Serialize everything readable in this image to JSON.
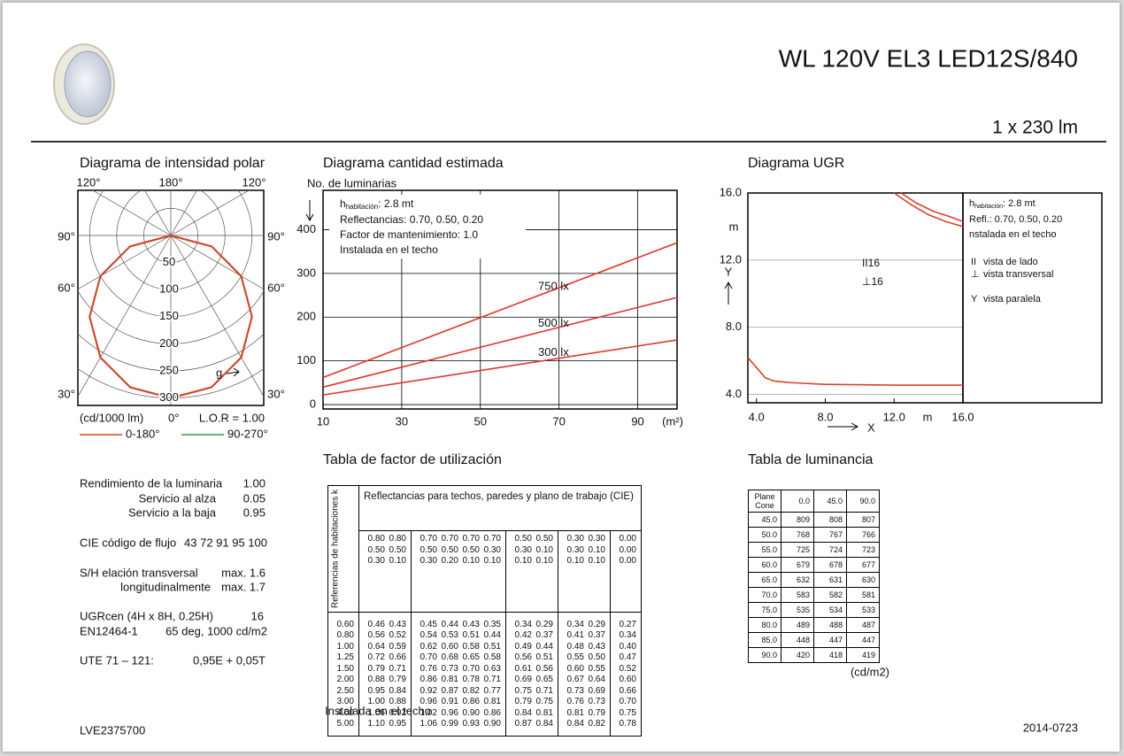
{
  "header": {
    "title": "WL 120V EL3 LED12S/840",
    "flux": "1 x 230 lm"
  },
  "polar": {
    "title": "Diagrama de intensidad polar",
    "angle_labels": [
      "120°",
      "180°",
      "120°",
      "90°",
      "90°",
      "60°",
      "60°",
      "30°",
      "30°"
    ],
    "radii": [
      50,
      100,
      150,
      200,
      250,
      300
    ],
    "angles": [
      0,
      15,
      30,
      45,
      60,
      75,
      90
    ],
    "series": [
      {
        "name": "0-180°",
        "color": "#d9412b",
        "values": [
          300,
          290,
          260,
          212,
          150,
          78,
          0
        ]
      },
      {
        "name": "90-270°",
        "color": "#2e9b4e",
        "values": [
          300,
          290,
          260,
          212,
          150,
          78,
          0
        ]
      }
    ],
    "g_label": "g",
    "unit": "(cd/1000 lm)",
    "zero": "0°",
    "lor": "L.O.R = 1.00"
  },
  "quantity": {
    "title": "Diagrama cantidad estimada",
    "ylabel": "No. de luminarias",
    "notes": {
      "h": "h",
      "sub": "habitación",
      "h_value": ": 2.8 mt",
      "lines": [
        "Reflectancias: 0.70, 0.50, 0.20",
        "Factor de mantenimiento: 1.0",
        "Instalada en el techo"
      ]
    },
    "xlim": [
      10,
      100
    ],
    "ylim": [
      -10,
      490
    ],
    "xticks": [
      10,
      30,
      50,
      70,
      90
    ],
    "yticks": [
      0,
      100,
      200,
      300,
      400
    ],
    "xunit": "(m²)",
    "x": [
      10,
      100
    ],
    "series": [
      {
        "name": "750 lx",
        "color": "#e0362c",
        "values": [
          62,
          370
        ]
      },
      {
        "name": "500 lx",
        "color": "#e0362c",
        "values": [
          40,
          245
        ]
      },
      {
        "name": "300 lx",
        "color": "#e0362c",
        "values": [
          22,
          148
        ]
      }
    ]
  },
  "ugr": {
    "title": "Diagrama UGR",
    "xlim": [
      3.5,
      16
    ],
    "ylim": [
      3.5,
      16
    ],
    "xticks": [
      {
        "value": 4,
        "label": "4.0"
      },
      {
        "value": 8,
        "label": "8.0"
      },
      {
        "value": 12,
        "label": "12.0"
      },
      {
        "value": 16,
        "label": "16.0"
      }
    ],
    "yticks": [
      {
        "value": 4,
        "label": "4.0"
      },
      {
        "value": 8,
        "label": "8.0"
      },
      {
        "value": 12,
        "label": "12.0"
      },
      {
        "value": 16,
        "label": "16.0"
      }
    ],
    "ylabel_unit": "m",
    "ylabel": "Y",
    "xlabel": "X",
    "xlabel_unit": "m",
    "series": [
      {
        "color": "#d9412b",
        "x": [
          3.5,
          4.5,
          5,
          6,
          8,
          12,
          16
        ],
        "values": [
          6.2,
          5.0,
          4.8,
          4.7,
          4.6,
          4.55,
          4.55
        ]
      },
      {
        "color": "#d9412b",
        "x": [
          12,
          13,
          14,
          15,
          16
        ],
        "values": [
          16,
          15.3,
          14.7,
          14.3,
          14.0
        ]
      },
      {
        "color": "#d9412b",
        "x": [
          12.4,
          13.3,
          14.3,
          15.2,
          16
        ],
        "values": [
          16,
          15.4,
          14.9,
          14.6,
          14.3
        ]
      }
    ],
    "annotations": [
      "II16",
      "⊥16"
    ],
    "notes": {
      "h": "h",
      "sub": "habitación",
      "h_value": ": 2.8 mt",
      "lines": [
        "Refl.: 0.70, 0.50, 0.20",
        "nstalada en el techo"
      ]
    },
    "legend": [
      {
        "symbol": "II",
        "text": "vista de lado"
      },
      {
        "symbol": "⊥",
        "text": "vista transversal"
      },
      {
        "symbol": "Y",
        "text": "vista paralela"
      }
    ]
  },
  "specs": [
    {
      "label": "Rendimiento de la luminaria",
      "value": "1.00"
    },
    {
      "label": "Servicio al alza",
      "value": "0.05"
    },
    {
      "label": "Servicio a la baja",
      "value": "0.95"
    },
    {
      "label": "CIE código de flujo",
      "value": "43 72 91 95 100"
    },
    {
      "label": "S/H elación transversal",
      "value": "max. 1.6"
    },
    {
      "label": "longitudinalmente",
      "value": "max. 1.7"
    },
    {
      "label": "UGRcen (4H x 8H, 0.25H)",
      "value": "16"
    },
    {
      "label": "EN12464-1",
      "value": "65 deg, 1000 cd/m2"
    },
    {
      "label": "UTE 71 – 121:",
      "value": "0,95E + 0,05T"
    }
  ],
  "table_factor": {
    "title": "Tabla de factor de utilización",
    "k_header": "Referencias de habitaciones k",
    "header": "Reflectancias para techos, paredes y plano de trabajo (CIE)",
    "reflectances": [
      [
        "0.80",
        "0.80",
        "0.70",
        "0.70",
        "0.70",
        "0.70",
        "0.50",
        "0.50",
        "0.30",
        "0.30",
        "0.00"
      ],
      [
        "0.50",
        "0.50",
        "0.50",
        "0.50",
        "0.50",
        "0.30",
        "0.30",
        "0.10",
        "0.30",
        "0.10",
        "0.00"
      ],
      [
        "0.30",
        "0.10",
        "0.30",
        "0.20",
        "0.10",
        "0.10",
        "0.10",
        "0.10",
        "0.10",
        "0.10",
        "0.00"
      ]
    ],
    "k": [
      "0.60",
      "0.80",
      "1.00",
      "1.25",
      "1.50",
      "2.00",
      "2.50",
      "3.00",
      "4.00",
      "5.00"
    ],
    "rows": [
      [
        "0.46",
        "0.43",
        "0.45",
        "0.44",
        "0.43",
        "0.35",
        "0.34",
        "0.29",
        "0.34",
        "0.29",
        "0.27"
      ],
      [
        "0.56",
        "0.52",
        "0.54",
        "0.53",
        "0.51",
        "0.44",
        "0.42",
        "0.37",
        "0.41",
        "0.37",
        "0.34"
      ],
      [
        "0.64",
        "0.59",
        "0.62",
        "0.60",
        "0.58",
        "0.51",
        "0.49",
        "0.44",
        "0.48",
        "0.43",
        "0.40"
      ],
      [
        "0.72",
        "0.66",
        "0.70",
        "0.68",
        "0.65",
        "0.58",
        "0.56",
        "0.51",
        "0.55",
        "0.50",
        "0.47"
      ],
      [
        "0.79",
        "0.71",
        "0.76",
        "0.73",
        "0.70",
        "0.63",
        "0.61",
        "0.56",
        "0.60",
        "0.55",
        "0.52"
      ],
      [
        "0.88",
        "0.79",
        "0.86",
        "0.81",
        "0.78",
        "0.71",
        "0.69",
        "0.65",
        "0.67",
        "0.64",
        "0.60"
      ],
      [
        "0.95",
        "0.84",
        "0.92",
        "0.87",
        "0.82",
        "0.77",
        "0.75",
        "0.71",
        "0.73",
        "0.69",
        "0.66"
      ],
      [
        "1.00",
        "0.88",
        "0.96",
        "0.91",
        "0.86",
        "0.81",
        "0.79",
        "0.75",
        "0.76",
        "0.73",
        "0.70"
      ],
      [
        "1.06",
        "0.92",
        "1.02",
        "0.96",
        "0.90",
        "0.86",
        "0.84",
        "0.81",
        "0.81",
        "0.79",
        "0.75"
      ],
      [
        "1.10",
        "0.95",
        "1.06",
        "0.99",
        "0.93",
        "0.90",
        "0.87",
        "0.84",
        "0.84",
        "0.82",
        "0.78"
      ]
    ],
    "footer": "Instalada en el techo"
  },
  "table_luminance": {
    "title": "Tabla de luminancia",
    "corner": [
      "Plane",
      "Cone"
    ],
    "planes": [
      "0.0",
      "45.0",
      "90.0"
    ],
    "rows": [
      [
        "45.0",
        "809",
        "808",
        "807"
      ],
      [
        "50.0",
        "768",
        "767",
        "766"
      ],
      [
        "55.0",
        "725",
        "724",
        "723"
      ],
      [
        "60.0",
        "679",
        "678",
        "677"
      ],
      [
        "65.0",
        "632",
        "631",
        "630"
      ],
      [
        "70.0",
        "583",
        "582",
        "581"
      ],
      [
        "75.0",
        "535",
        "534",
        "533"
      ],
      [
        "80.0",
        "489",
        "488",
        "487"
      ],
      [
        "85.0",
        "448",
        "447",
        "447"
      ],
      [
        "90.0",
        "420",
        "418",
        "419"
      ]
    ],
    "unit": "(cd/m2)"
  },
  "footer": {
    "code": "LVE2375700",
    "date": "2014-0723"
  }
}
